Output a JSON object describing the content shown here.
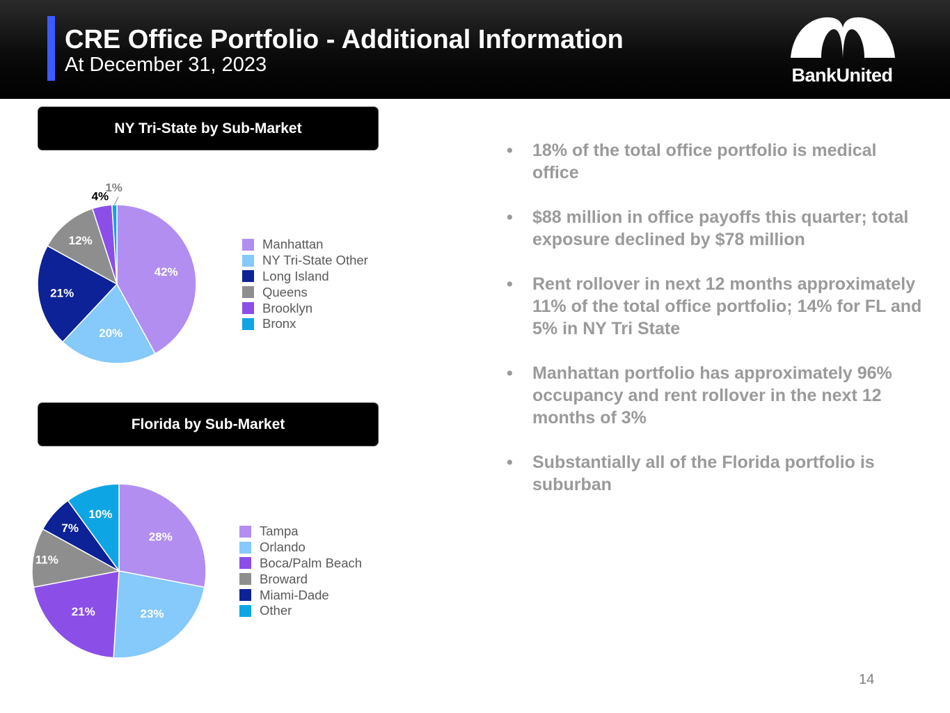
{
  "header": {
    "title": "CRE Office Portfolio - Additional Information",
    "subtitle": "At December 31, 2023",
    "logo_text": "BankUnited",
    "accent_color": "#3b5bff"
  },
  "chart_data": [
    {
      "type": "pie",
      "title": "NY Tri-State by Sub-Market",
      "categories": [
        "Manhattan",
        "NY Tri-State Other",
        "Long Island",
        "Queens",
        "Brooklyn",
        "Bronx"
      ],
      "values": [
        42,
        20,
        21,
        12,
        4,
        1
      ],
      "labels": [
        "42%",
        "20%",
        "21%",
        "12%",
        "4%",
        "1%"
      ],
      "colors": [
        "#b28ef0",
        "#86c9fb",
        "#0d2296",
        "#8e8e8e",
        "#8b4fe8",
        "#0ea5e4"
      ],
      "start_angle_deg": 0,
      "legend_position": "right"
    },
    {
      "type": "pie",
      "title": "Florida by Sub-Market",
      "categories": [
        "Tampa",
        "Orlando",
        "Boca/Palm Beach",
        "Broward",
        "Miami-Dade",
        "Other"
      ],
      "values": [
        28,
        23,
        21,
        11,
        7,
        10
      ],
      "labels": [
        "28%",
        "23%",
        "21%",
        "11%",
        "7%",
        "10%"
      ],
      "colors": [
        "#b28ef0",
        "#86c9fb",
        "#8b4fe8",
        "#8e8e8e",
        "#0d2296",
        "#0ea5e4"
      ],
      "start_angle_deg": 0,
      "legend_position": "right"
    }
  ],
  "bullets": [
    "18% of the total office portfolio is medical office",
    "$88 million in office payoffs this quarter; total exposure declined by $78 million",
    "Rent rollover in next 12 months approximately 11% of the total office portfolio; 14% for FL and 5% in NY Tri State",
    "Manhattan portfolio has approximately 96% occupancy and rent rollover in the next 12 months of 3%",
    "Substantially all of the Florida portfolio is suburban"
  ],
  "bullet_symbol": "•",
  "page_number": "14"
}
